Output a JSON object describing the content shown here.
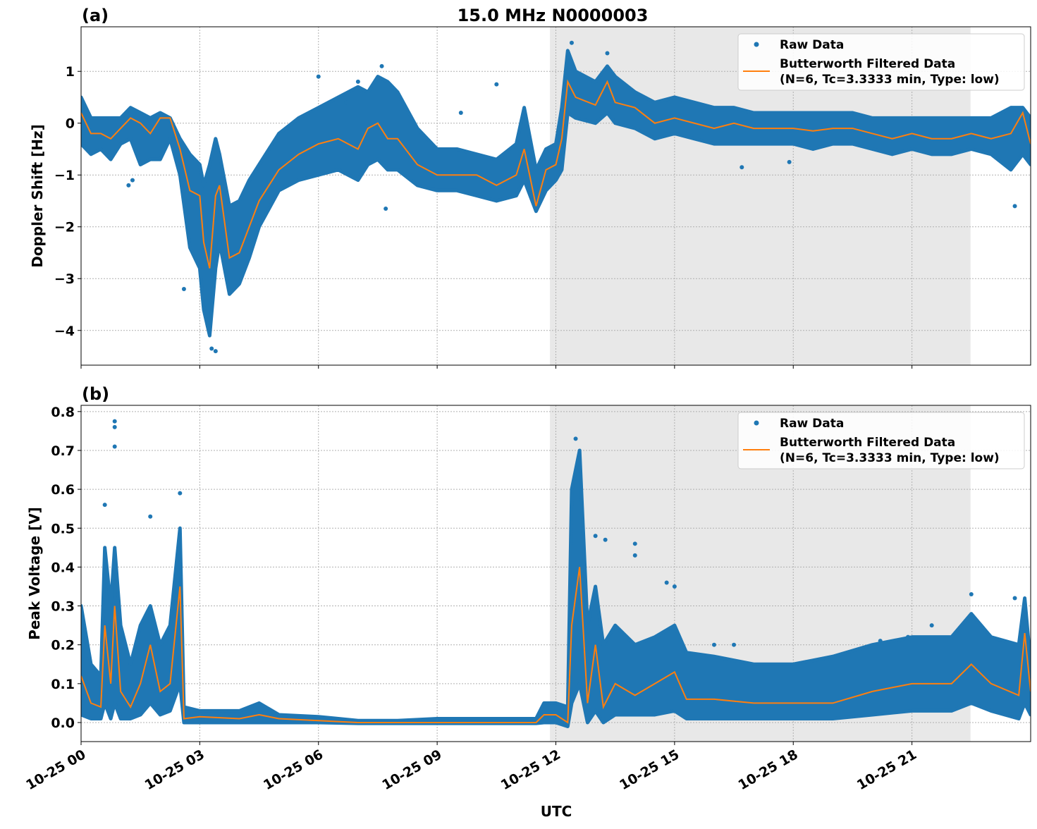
{
  "title": "15.0 MHz N0000003",
  "xlabel": "UTC",
  "x_tick_labels": [
    "10-25 00",
    "10-25 03",
    "10-25 06",
    "10-25 09",
    "10-25 12",
    "10-25 15",
    "10-25 18",
    "10-25 21"
  ],
  "x_ticks_hours": [
    0,
    3,
    6,
    9,
    12,
    15,
    18,
    21
  ],
  "xlim_hours": [
    0,
    24
  ],
  "shaded_span_hours": [
    11.85,
    22.48
  ],
  "colors": {
    "raw": "#1f77b4",
    "filtered": "#ff7f0e",
    "shade": "#e8e8e8",
    "grid": "#b0b0b0"
  },
  "legend": {
    "raw_label": "Raw Data",
    "filtered_label_1": "Butterworth Filtered Data",
    "filtered_label_2": "(N=6, Tc=3.3333 min, Type: low)",
    "placement": "upper right"
  },
  "chart_data": [
    {
      "panel_label": "(a)",
      "type": "scatter+line",
      "ylabel": "Doppler Shift [Hz]",
      "ylim": [
        -4.67,
        1.86
      ],
      "y_ticks": [
        -4,
        -3,
        -2,
        -1,
        0,
        1
      ],
      "y_tick_labels": [
        "−4",
        "−3",
        "−2",
        "−1",
        "0",
        "1"
      ],
      "grid": true,
      "t": [
        0,
        0.25,
        0.5,
        0.75,
        1,
        1.25,
        1.5,
        1.75,
        2,
        2.25,
        2.5,
        2.75,
        3,
        3.1,
        3.25,
        3.4,
        3.5,
        3.75,
        4,
        4.25,
        4.5,
        5,
        5.5,
        6,
        6.5,
        7,
        7.25,
        7.5,
        7.75,
        8,
        8.5,
        9,
        9.5,
        10,
        10.5,
        11,
        11.2,
        11.5,
        11.75,
        12,
        12.15,
        12.3,
        12.5,
        13,
        13.3,
        13.5,
        14,
        14.5,
        15,
        15.5,
        16,
        16.5,
        17,
        17.5,
        18,
        18.5,
        19,
        19.5,
        20,
        20.5,
        21,
        21.5,
        22,
        22.5,
        23,
        23.5,
        23.8,
        24
      ],
      "filtered": [
        0.2,
        -0.2,
        -0.2,
        -0.3,
        -0.1,
        0.1,
        0.0,
        -0.2,
        0.1,
        0.1,
        -0.5,
        -1.3,
        -1.4,
        -2.3,
        -2.8,
        -1.4,
        -1.2,
        -2.6,
        -2.5,
        -2.0,
        -1.5,
        -0.9,
        -0.6,
        -0.4,
        -0.3,
        -0.5,
        -0.1,
        0.0,
        -0.3,
        -0.3,
        -0.8,
        -1.0,
        -1.0,
        -1.0,
        -1.2,
        -1.0,
        -0.5,
        -1.6,
        -0.9,
        -0.8,
        -0.3,
        0.8,
        0.5,
        0.35,
        0.8,
        0.4,
        0.3,
        0.0,
        0.1,
        0.0,
        -0.1,
        0.0,
        -0.1,
        -0.1,
        -0.1,
        -0.15,
        -0.1,
        -0.1,
        -0.2,
        -0.3,
        -0.2,
        -0.3,
        -0.3,
        -0.2,
        -0.3,
        -0.2,
        0.2,
        -0.4
      ],
      "raw_upper": [
        0.5,
        0.1,
        0.1,
        0.1,
        0.1,
        0.3,
        0.2,
        0.1,
        0.2,
        0.1,
        -0.3,
        -0.6,
        -0.8,
        -1.2,
        -0.8,
        -0.3,
        -0.6,
        -1.6,
        -1.5,
        -1.1,
        -0.8,
        -0.2,
        0.1,
        0.3,
        0.5,
        0.7,
        0.6,
        0.9,
        0.8,
        0.6,
        -0.1,
        -0.5,
        -0.5,
        -0.6,
        -0.7,
        -0.4,
        0.3,
        -0.9,
        -0.5,
        -0.4,
        0.3,
        1.4,
        1.0,
        0.8,
        1.1,
        0.9,
        0.6,
        0.4,
        0.5,
        0.4,
        0.3,
        0.3,
        0.2,
        0.2,
        0.2,
        0.2,
        0.2,
        0.2,
        0.1,
        0.1,
        0.1,
        0.1,
        0.1,
        0.1,
        0.1,
        0.3,
        0.3,
        0.1
      ],
      "raw_lower": [
        -0.4,
        -0.6,
        -0.5,
        -0.7,
        -0.4,
        -0.3,
        -0.8,
        -0.7,
        -0.7,
        -0.3,
        -1.0,
        -2.4,
        -2.8,
        -3.6,
        -4.1,
        -2.8,
        -2.3,
        -3.3,
        -3.1,
        -2.6,
        -2.0,
        -1.3,
        -1.1,
        -1.0,
        -0.9,
        -1.1,
        -0.8,
        -0.7,
        -0.9,
        -0.9,
        -1.2,
        -1.3,
        -1.3,
        -1.4,
        -1.5,
        -1.4,
        -1.1,
        -1.7,
        -1.3,
        -1.1,
        -0.9,
        0.2,
        0.1,
        0.0,
        0.2,
        0.0,
        -0.1,
        -0.3,
        -0.2,
        -0.3,
        -0.4,
        -0.4,
        -0.4,
        -0.4,
        -0.4,
        -0.5,
        -0.4,
        -0.4,
        -0.5,
        -0.6,
        -0.5,
        -0.6,
        -0.6,
        -0.5,
        -0.6,
        -0.9,
        -0.6,
        -0.8
      ],
      "raw_outliers": [
        [
          3.4,
          -4.4
        ],
        [
          3.3,
          -4.35
        ],
        [
          2.6,
          -3.2
        ],
        [
          7.6,
          1.1
        ],
        [
          7.0,
          0.8
        ],
        [
          6.0,
          0.9
        ],
        [
          6.7,
          0.4
        ],
        [
          7.7,
          -1.65
        ],
        [
          10.5,
          0.75
        ],
        [
          12.4,
          1.55
        ],
        [
          13.3,
          1.35
        ],
        [
          9.6,
          0.2
        ],
        [
          23.6,
          -1.6
        ],
        [
          16.7,
          -0.85
        ],
        [
          17.9,
          -0.75
        ],
        [
          1.2,
          -1.2
        ],
        [
          1.3,
          -1.1
        ]
      ]
    },
    {
      "panel_label": "(b)",
      "type": "scatter+line",
      "ylabel": "Peak Voltage [V]",
      "ylim": [
        -0.049,
        0.816
      ],
      "y_ticks": [
        0,
        0.1,
        0.2,
        0.3,
        0.4,
        0.5,
        0.6,
        0.7,
        0.8
      ],
      "y_tick_labels": [
        "0.0",
        "0.1",
        "0.2",
        "0.3",
        "0.4",
        "0.5",
        "0.6",
        "0.7",
        "0.8"
      ],
      "grid": true,
      "t": [
        0,
        0.25,
        0.5,
        0.6,
        0.75,
        0.85,
        1,
        1.25,
        1.5,
        1.75,
        2,
        2.25,
        2.5,
        2.6,
        3,
        4,
        4.5,
        5,
        6,
        7,
        8,
        9,
        10,
        11,
        11.5,
        11.7,
        12,
        12.3,
        12.4,
        12.6,
        12.8,
        13,
        13.2,
        13.5,
        14,
        14.5,
        15,
        15.3,
        16,
        17,
        18,
        19,
        20,
        21,
        22,
        22.5,
        23,
        23.7,
        23.85,
        24
      ],
      "filtered": [
        0.12,
        0.05,
        0.04,
        0.25,
        0.1,
        0.3,
        0.08,
        0.04,
        0.1,
        0.2,
        0.08,
        0.1,
        0.35,
        0.01,
        0.015,
        0.01,
        0.02,
        0.01,
        0.005,
        0.0,
        0.0,
        0.0,
        0.0,
        0.0,
        0.0,
        0.02,
        0.02,
        0.0,
        0.25,
        0.4,
        0.05,
        0.2,
        0.04,
        0.1,
        0.07,
        0.1,
        0.13,
        0.06,
        0.06,
        0.05,
        0.05,
        0.05,
        0.08,
        0.1,
        0.1,
        0.15,
        0.1,
        0.07,
        0.23,
        0.08
      ],
      "raw_upper": [
        0.3,
        0.15,
        0.12,
        0.45,
        0.3,
        0.45,
        0.25,
        0.15,
        0.25,
        0.3,
        0.2,
        0.25,
        0.5,
        0.04,
        0.03,
        0.03,
        0.05,
        0.02,
        0.015,
        0.005,
        0.005,
        0.01,
        0.01,
        0.01,
        0.01,
        0.05,
        0.05,
        0.04,
        0.6,
        0.7,
        0.25,
        0.35,
        0.2,
        0.25,
        0.2,
        0.22,
        0.25,
        0.18,
        0.17,
        0.15,
        0.15,
        0.17,
        0.2,
        0.22,
        0.22,
        0.28,
        0.22,
        0.2,
        0.32,
        0.15
      ],
      "raw_lower": [
        0.02,
        0.01,
        0.01,
        0.05,
        0.01,
        0.05,
        0.01,
        0.01,
        0.02,
        0.05,
        0.02,
        0.03,
        0.1,
        0.0,
        0.0,
        0.0,
        0.0,
        0.0,
        0.0,
        -0.002,
        -0.002,
        -0.002,
        -0.002,
        -0.002,
        -0.002,
        0.0,
        0.0,
        -0.01,
        0.05,
        0.1,
        0.0,
        0.03,
        0.0,
        0.02,
        0.02,
        0.02,
        0.03,
        0.01,
        0.01,
        0.01,
        0.01,
        0.01,
        0.02,
        0.03,
        0.03,
        0.05,
        0.03,
        0.01,
        0.05,
        0.02
      ],
      "raw_outliers": [
        [
          0.85,
          0.775
        ],
        [
          0.85,
          0.76
        ],
        [
          0.85,
          0.71
        ],
        [
          0.6,
          0.56
        ],
        [
          1.75,
          0.53
        ],
        [
          2.5,
          0.59
        ],
        [
          12.5,
          0.73
        ],
        [
          13.0,
          0.48
        ],
        [
          13.25,
          0.47
        ],
        [
          14.0,
          0.46
        ],
        [
          14.0,
          0.43
        ],
        [
          14.8,
          0.36
        ],
        [
          15.0,
          0.35
        ],
        [
          16.0,
          0.2
        ],
        [
          16.5,
          0.2
        ],
        [
          20.2,
          0.21
        ],
        [
          20.9,
          0.22
        ],
        [
          21.5,
          0.25
        ],
        [
          22.5,
          0.33
        ],
        [
          23.6,
          0.32
        ]
      ]
    }
  ]
}
